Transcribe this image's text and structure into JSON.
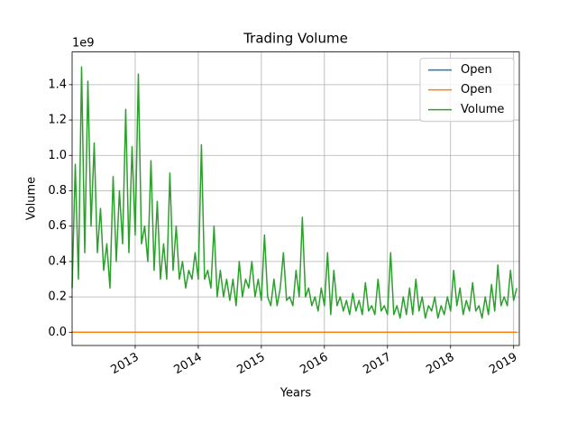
{
  "chart_data": {
    "type": "line",
    "title": "Trading Volume",
    "x_label": "Years",
    "y_label": "Volume",
    "y_offset_label": "1e9",
    "x": [
      2012.0,
      2012.05,
      2012.1,
      2012.15,
      2012.2,
      2012.25,
      2012.3,
      2012.35,
      2012.4,
      2012.45,
      2012.5,
      2012.55,
      2012.6,
      2012.65,
      2012.7,
      2012.75,
      2012.8,
      2012.85,
      2012.9,
      2012.95,
      2013.0,
      2013.05,
      2013.1,
      2013.15,
      2013.2,
      2013.25,
      2013.3,
      2013.35,
      2013.4,
      2013.45,
      2013.5,
      2013.55,
      2013.6,
      2013.65,
      2013.7,
      2013.75,
      2013.8,
      2013.85,
      2013.9,
      2013.95,
      2014.0,
      2014.05,
      2014.1,
      2014.15,
      2014.2,
      2014.25,
      2014.3,
      2014.35,
      2014.4,
      2014.45,
      2014.5,
      2014.55,
      2014.6,
      2014.65,
      2014.7,
      2014.75,
      2014.8,
      2014.85,
      2014.9,
      2014.95,
      2015.0,
      2015.05,
      2015.1,
      2015.15,
      2015.2,
      2015.25,
      2015.3,
      2015.35,
      2015.4,
      2015.45,
      2015.5,
      2015.55,
      2015.6,
      2015.65,
      2015.7,
      2015.75,
      2015.8,
      2015.85,
      2015.9,
      2015.95,
      2016.0,
      2016.05,
      2016.1,
      2016.15,
      2016.2,
      2016.25,
      2016.3,
      2016.35,
      2016.4,
      2016.45,
      2016.5,
      2016.55,
      2016.6,
      2016.65,
      2016.7,
      2016.75,
      2016.8,
      2016.85,
      2016.9,
      2016.95,
      2017.0,
      2017.05,
      2017.1,
      2017.15,
      2017.2,
      2017.25,
      2017.3,
      2017.35,
      2017.4,
      2017.45,
      2017.5,
      2017.55,
      2017.6,
      2017.65,
      2017.7,
      2017.75,
      2017.8,
      2017.85,
      2017.9,
      2017.95,
      2018.0,
      2018.05,
      2018.1,
      2018.15,
      2018.2,
      2018.25,
      2018.3,
      2018.35,
      2018.4,
      2018.45,
      2018.5,
      2018.55,
      2018.6,
      2018.65,
      2018.7,
      2018.75,
      2018.8,
      2018.85,
      2018.9,
      2018.95,
      2019.0,
      2019.05
    ],
    "series": [
      {
        "name": "Open",
        "color": "#1f77b4",
        "values": [
          0,
          0,
          0,
          0,
          0,
          0,
          0,
          0,
          0,
          0,
          0,
          0,
          0,
          0,
          0,
          0,
          0,
          0,
          0,
          0,
          0,
          0,
          0,
          0,
          0,
          0,
          0,
          0,
          0,
          0,
          0,
          0,
          0,
          0,
          0,
          0,
          0,
          0,
          0,
          0,
          0,
          0,
          0,
          0,
          0,
          0,
          0,
          0,
          0,
          0,
          0,
          0,
          0,
          0,
          0,
          0,
          0,
          0,
          0,
          0,
          0,
          0,
          0,
          0,
          0,
          0,
          0,
          0,
          0,
          0,
          0,
          0,
          0,
          0,
          0,
          0,
          0,
          0,
          0,
          0,
          0,
          0,
          0,
          0,
          0,
          0,
          0,
          0,
          0,
          0,
          0,
          0,
          0,
          0,
          0,
          0,
          0,
          0,
          0,
          0,
          0,
          0,
          0,
          0,
          0,
          0,
          0,
          0,
          0,
          0,
          0,
          0,
          0,
          0,
          0,
          0,
          0,
          0,
          0,
          0,
          0,
          0,
          0,
          0,
          0,
          0,
          0,
          0,
          0,
          0,
          0,
          0,
          0,
          0,
          0,
          0,
          0,
          0,
          0,
          0,
          0,
          0
        ]
      },
      {
        "name": "Open",
        "color": "#ff7f0e",
        "values": [
          0,
          0,
          0,
          0,
          0,
          0,
          0,
          0,
          0,
          0,
          0,
          0,
          0,
          0,
          0,
          0,
          0,
          0,
          0,
          0,
          0,
          0,
          0,
          0,
          0,
          0,
          0,
          0,
          0,
          0,
          0,
          0,
          0,
          0,
          0,
          0,
          0,
          0,
          0,
          0,
          0,
          0,
          0,
          0,
          0,
          0,
          0,
          0,
          0,
          0,
          0,
          0,
          0,
          0,
          0,
          0,
          0,
          0,
          0,
          0,
          0,
          0,
          0,
          0,
          0,
          0,
          0,
          0,
          0,
          0,
          0,
          0,
          0,
          0,
          0,
          0,
          0,
          0,
          0,
          0,
          0,
          0,
          0,
          0,
          0,
          0,
          0,
          0,
          0,
          0,
          0,
          0,
          0,
          0,
          0,
          0,
          0,
          0,
          0,
          0,
          0,
          0,
          0,
          0,
          0,
          0,
          0,
          0,
          0,
          0,
          0,
          0,
          0,
          0,
          0,
          0,
          0,
          0,
          0,
          0,
          0,
          0,
          0,
          0,
          0,
          0,
          0,
          0,
          0,
          0,
          0,
          0,
          0,
          0,
          0,
          0,
          0,
          0,
          0,
          0,
          0,
          0
        ]
      },
      {
        "name": "Volume",
        "color": "#2ca02c",
        "values": [
          0.25,
          0.95,
          0.3,
          1.5,
          0.45,
          1.42,
          0.6,
          1.07,
          0.45,
          0.7,
          0.35,
          0.5,
          0.25,
          0.88,
          0.4,
          0.8,
          0.5,
          1.26,
          0.45,
          1.05,
          0.55,
          1.46,
          0.5,
          0.6,
          0.4,
          0.97,
          0.35,
          0.74,
          0.3,
          0.5,
          0.3,
          0.9,
          0.35,
          0.6,
          0.3,
          0.4,
          0.25,
          0.35,
          0.3,
          0.45,
          0.3,
          1.06,
          0.3,
          0.35,
          0.25,
          0.6,
          0.2,
          0.35,
          0.2,
          0.3,
          0.18,
          0.3,
          0.15,
          0.4,
          0.2,
          0.3,
          0.25,
          0.4,
          0.2,
          0.3,
          0.18,
          0.55,
          0.2,
          0.15,
          0.3,
          0.15,
          0.25,
          0.45,
          0.18,
          0.2,
          0.15,
          0.35,
          0.2,
          0.65,
          0.2,
          0.25,
          0.15,
          0.2,
          0.12,
          0.25,
          0.15,
          0.45,
          0.1,
          0.35,
          0.15,
          0.2,
          0.12,
          0.18,
          0.1,
          0.22,
          0.12,
          0.18,
          0.1,
          0.28,
          0.12,
          0.15,
          0.1,
          0.3,
          0.12,
          0.15,
          0.1,
          0.45,
          0.1,
          0.15,
          0.08,
          0.2,
          0.1,
          0.25,
          0.1,
          0.3,
          0.12,
          0.2,
          0.08,
          0.15,
          0.12,
          0.2,
          0.08,
          0.15,
          0.1,
          0.2,
          0.12,
          0.35,
          0.15,
          0.25,
          0.1,
          0.18,
          0.12,
          0.28,
          0.12,
          0.15,
          0.08,
          0.2,
          0.1,
          0.27,
          0.12,
          0.38,
          0.15,
          0.2,
          0.15,
          0.35,
          0.18,
          0.25
        ]
      }
    ],
    "xlim": [
      2012.0,
      2019.09
    ],
    "ylim": [
      -0.075,
      1.585
    ],
    "xticks": [
      2013,
      2014,
      2015,
      2016,
      2017,
      2018,
      2019
    ],
    "yticks": [
      {
        "value": 0,
        "label": "0.0"
      },
      0.2,
      0.4,
      0.6,
      0.8,
      {
        "value": 1,
        "label": "1.0"
      },
      1.2,
      1.4
    ],
    "grid": true,
    "legend": "upper right"
  }
}
